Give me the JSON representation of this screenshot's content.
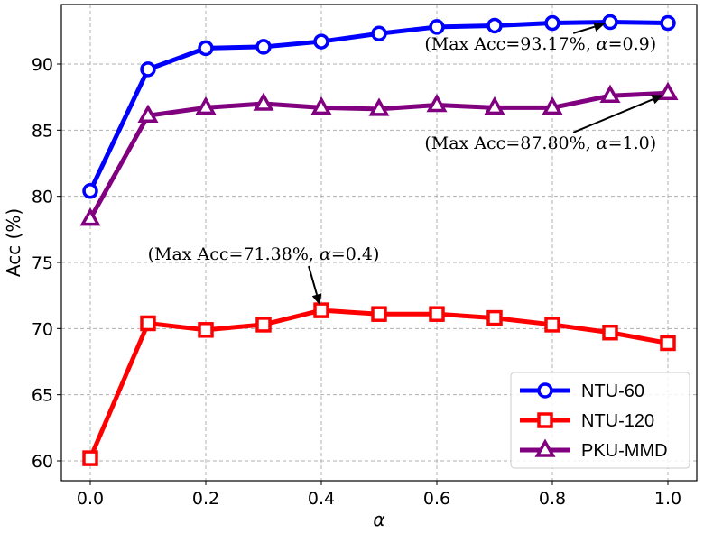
{
  "chart_data": {
    "type": "line",
    "xlabel": "α",
    "ylabel": "Acc (%)",
    "x": [
      0.0,
      0.1,
      0.2,
      0.3,
      0.4,
      0.5,
      0.6,
      0.7,
      0.8,
      0.9,
      1.0
    ],
    "xlim": [
      -0.05,
      1.05
    ],
    "ylim": [
      58.5,
      94.5
    ],
    "xticks": [
      0.0,
      0.2,
      0.4,
      0.6,
      0.8,
      1.0
    ],
    "xtick_labels": [
      "0.0",
      "0.2",
      "0.4",
      "0.6",
      "0.8",
      "1.0"
    ],
    "yticks": [
      60,
      65,
      70,
      75,
      80,
      85,
      90
    ],
    "ytick_labels": [
      "60",
      "65",
      "70",
      "75",
      "80",
      "85",
      "90"
    ],
    "grid": true,
    "legend_position": "bottom-right",
    "series": [
      {
        "name": "NTU-60",
        "color": "#0000ff",
        "marker": "circle",
        "values": [
          80.4,
          89.6,
          91.2,
          91.3,
          91.7,
          92.3,
          92.8,
          92.9,
          93.1,
          93.17,
          93.1
        ]
      },
      {
        "name": "NTU-120",
        "color": "#ff0000",
        "marker": "square",
        "values": [
          60.2,
          70.4,
          69.9,
          70.3,
          71.38,
          71.1,
          71.1,
          70.8,
          70.3,
          69.7,
          68.9
        ]
      },
      {
        "name": "PKU-MMD",
        "color": "#800080",
        "marker": "triangle",
        "values": [
          78.3,
          86.1,
          86.7,
          87.0,
          86.7,
          86.6,
          86.9,
          86.7,
          86.7,
          87.6,
          87.8
        ]
      }
    ],
    "annotations": [
      {
        "prefix": "(Max Acc=93.17%, ",
        "alpha_sym": "α",
        "suffix": "=0.9)",
        "point": [
          0.9,
          93.17
        ],
        "text_at": [
          0.98,
          91.1
        ],
        "anchor": "end"
      },
      {
        "prefix": "(Max Acc=87.80%, ",
        "alpha_sym": "α",
        "suffix": "=1.0)",
        "point": [
          1.0,
          87.8
        ],
        "text_at": [
          0.98,
          83.6
        ],
        "anchor": "end"
      },
      {
        "prefix": "(Max Acc=71.38%, ",
        "alpha_sym": "α",
        "suffix": "=0.4)",
        "point": [
          0.4,
          71.38
        ],
        "text_at": [
          0.3,
          75.2
        ],
        "anchor": "middle"
      }
    ]
  }
}
